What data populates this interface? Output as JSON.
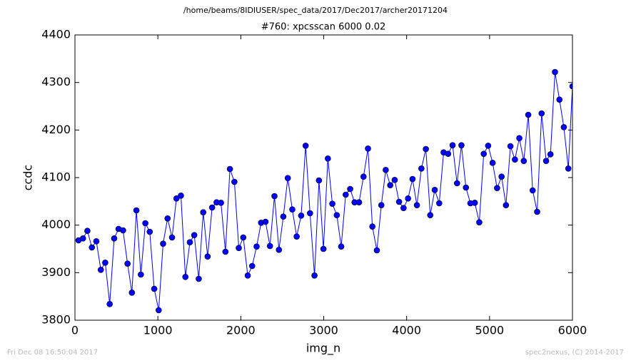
{
  "chart_data": {
    "type": "line",
    "suptitle": "/home/beams/8IDIUSER/spec_data/2017/Dec2017/archer20171204",
    "title": "#760: xpcsscan 6000 0.02",
    "xlabel": "img_n",
    "ylabel": "ccdc",
    "footer_left": "Fri Dec 08 16:50:04 2017",
    "footer_right": "spec2nexus, (C) 2014-2017",
    "xlim": [
      0,
      6000
    ],
    "xticks": [
      0,
      1000,
      2000,
      3000,
      4000,
      5000,
      6000
    ],
    "ylim": [
      3800,
      4400
    ],
    "yticks": [
      3800,
      3900,
      4000,
      4100,
      4200,
      4300,
      4400
    ],
    "x": [
      43,
      97,
      150,
      204,
      258,
      312,
      365,
      419,
      473,
      526,
      580,
      634,
      687,
      741,
      795,
      849,
      902,
      956,
      1010,
      1063,
      1117,
      1171,
      1224,
      1278,
      1332,
      1386,
      1439,
      1493,
      1547,
      1600,
      1654,
      1708,
      1761,
      1815,
      1869,
      1923,
      1976,
      2030,
      2084,
      2137,
      2191,
      2245,
      2298,
      2352,
      2406,
      2460,
      2513,
      2567,
      2621,
      2674,
      2728,
      2782,
      2835,
      2889,
      2943,
      2997,
      3050,
      3104,
      3158,
      3211,
      3265,
      3319,
      3372,
      3426,
      3480,
      3534,
      3587,
      3641,
      3695,
      3748,
      3802,
      3856,
      3909,
      3963,
      4017,
      4071,
      4124,
      4178,
      4232,
      4285,
      4339,
      4393,
      4446,
      4500,
      4554,
      4608,
      4661,
      4715,
      4769,
      4822,
      4876,
      4930,
      4983,
      5037,
      5091,
      5145,
      5198,
      5252,
      5306,
      5359,
      5413,
      5467,
      5520,
      5574,
      5628,
      5682,
      5735,
      5789,
      5843,
      5896,
      5950,
      6000
    ],
    "series": [
      {
        "name": "ccdc",
        "color": "#0000ff",
        "values": [
          3968,
          3972,
          3988,
          3953,
          3966,
          3906,
          3921,
          3834,
          3972,
          3992,
          3989,
          3919,
          3858,
          4031,
          3896,
          4004,
          3986,
          3866,
          3821,
          3961,
          4014,
          3974,
          4056,
          4062,
          3891,
          3964,
          3979,
          3887,
          4027,
          3934,
          4037,
          4048,
          4047,
          3944,
          4118,
          4091,
          3952,
          3974,
          3894,
          3914,
          3955,
          4005,
          4007,
          3956,
          4061,
          3948,
          4018,
          4099,
          4033,
          3976,
          4020,
          4167,
          4025,
          3894,
          4094,
          3950,
          4140,
          4045,
          4021,
          3955,
          4064,
          4076,
          4048,
          4048,
          4102,
          4161,
          3997,
          3947,
          4042,
          4116,
          4084,
          4095,
          4049,
          4036,
          4056,
          4097,
          4042,
          4119,
          4160,
          4021,
          4074,
          4046,
          4153,
          4150,
          4168,
          4088,
          4168,
          4079,
          4046,
          4047,
          4006,
          4150,
          4167,
          4131,
          4078,
          4102,
          4042,
          4166,
          4138,
          4183,
          4135,
          4232,
          4073,
          4028,
          4235,
          4135,
          4149,
          4322,
          4264,
          4206,
          4119,
          4292
        ]
      }
    ]
  }
}
